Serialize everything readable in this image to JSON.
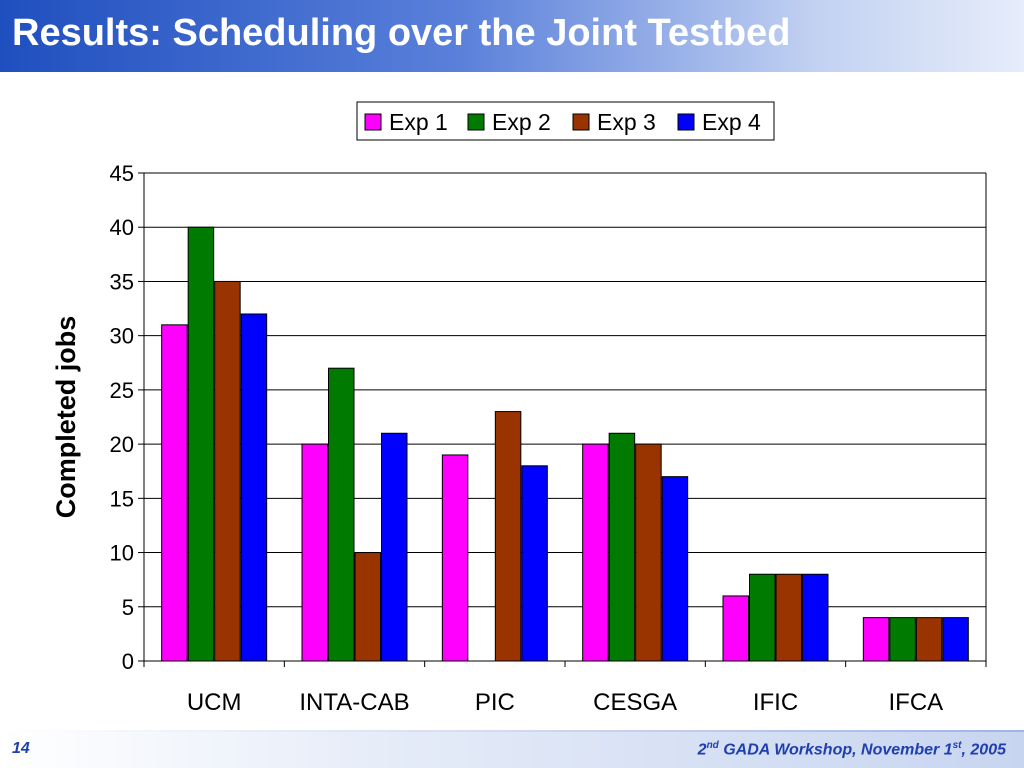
{
  "slide": {
    "title": "Results: Scheduling over the Joint Testbed",
    "page_number": "14",
    "footer": {
      "ordinal": "2",
      "ordinal_suffix": "nd",
      "event": " GADA Workshop, November 1",
      "day_suffix": "st",
      "year": ", 2005"
    }
  },
  "colors": {
    "title_bar": "#1f4fbf",
    "footer_text": "#1f3fae"
  },
  "chart_data": {
    "type": "bar",
    "title": "",
    "xlabel": "",
    "ylabel": "Completed jobs",
    "ylim": [
      0,
      45
    ],
    "yticks": [
      0,
      5,
      10,
      15,
      20,
      25,
      30,
      35,
      40,
      45
    ],
    "grid": true,
    "legend_position": "top-right",
    "categories": [
      "UCM",
      "INTA-CAB",
      "PIC",
      "CESGA",
      "IFIC",
      "IFCA"
    ],
    "series": [
      {
        "name": "Exp 1",
        "color": "#ff00ff",
        "values": [
          31,
          20,
          19,
          20,
          6,
          4
        ]
      },
      {
        "name": "Exp 2",
        "color": "#007a00",
        "values": [
          40,
          27,
          0,
          21,
          8,
          4
        ]
      },
      {
        "name": "Exp 3",
        "color": "#993300",
        "values": [
          35,
          10,
          23,
          20,
          8,
          4
        ]
      },
      {
        "name": "Exp 4",
        "color": "#0000ff",
        "values": [
          32,
          21,
          18,
          17,
          8,
          4
        ]
      }
    ]
  }
}
